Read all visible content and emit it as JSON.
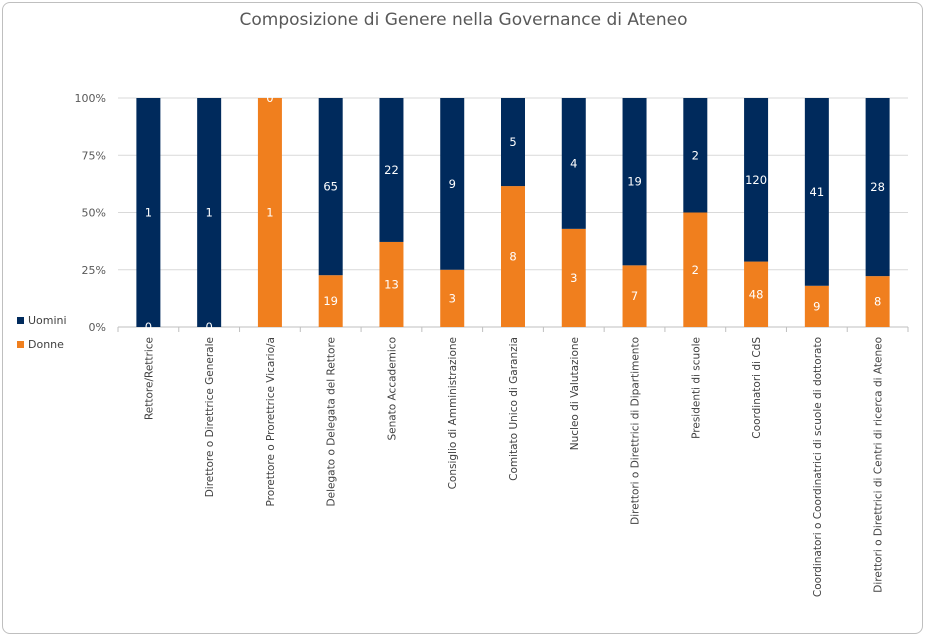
{
  "chart_data": {
    "type": "bar",
    "stacked": "percent",
    "title": "Composizione di Genere nella Governance di Ateneo",
    "categories": [
      "Rettore/Rettrice",
      "Direttore o Direttrice Generale",
      "Prorettore o Prorettrice Vicario/a",
      "Delegato o Delegata del Rettore",
      "Senato Accademico",
      "Consiglio di Amministrazione",
      "Comitato Unico di Garanzia",
      "Nucleo di Valutazione",
      "Direttori o Direttrici di Dipartimento",
      "Presidenti di scuole",
      "Coordinatori di CdS",
      "Coordinatori o Coordinatrici di scuole di dottorato",
      "Direttori o Direttrici di Centri di ricerca di Ateneo"
    ],
    "series": [
      {
        "name": "Donne",
        "color": "#f07f1e",
        "values": [
          0,
          0,
          1,
          19,
          13,
          3,
          8,
          3,
          7,
          2,
          48,
          9,
          8
        ]
      },
      {
        "name": "Uomini",
        "color": "#002a5c",
        "values": [
          1,
          1,
          0,
          65,
          22,
          9,
          5,
          4,
          19,
          2,
          120,
          41,
          28
        ]
      }
    ],
    "yticks": [
      "0%",
      "25%",
      "50%",
      "75%",
      "100%"
    ],
    "ylim": [
      0,
      100
    ],
    "grid": true,
    "legend": "left"
  }
}
